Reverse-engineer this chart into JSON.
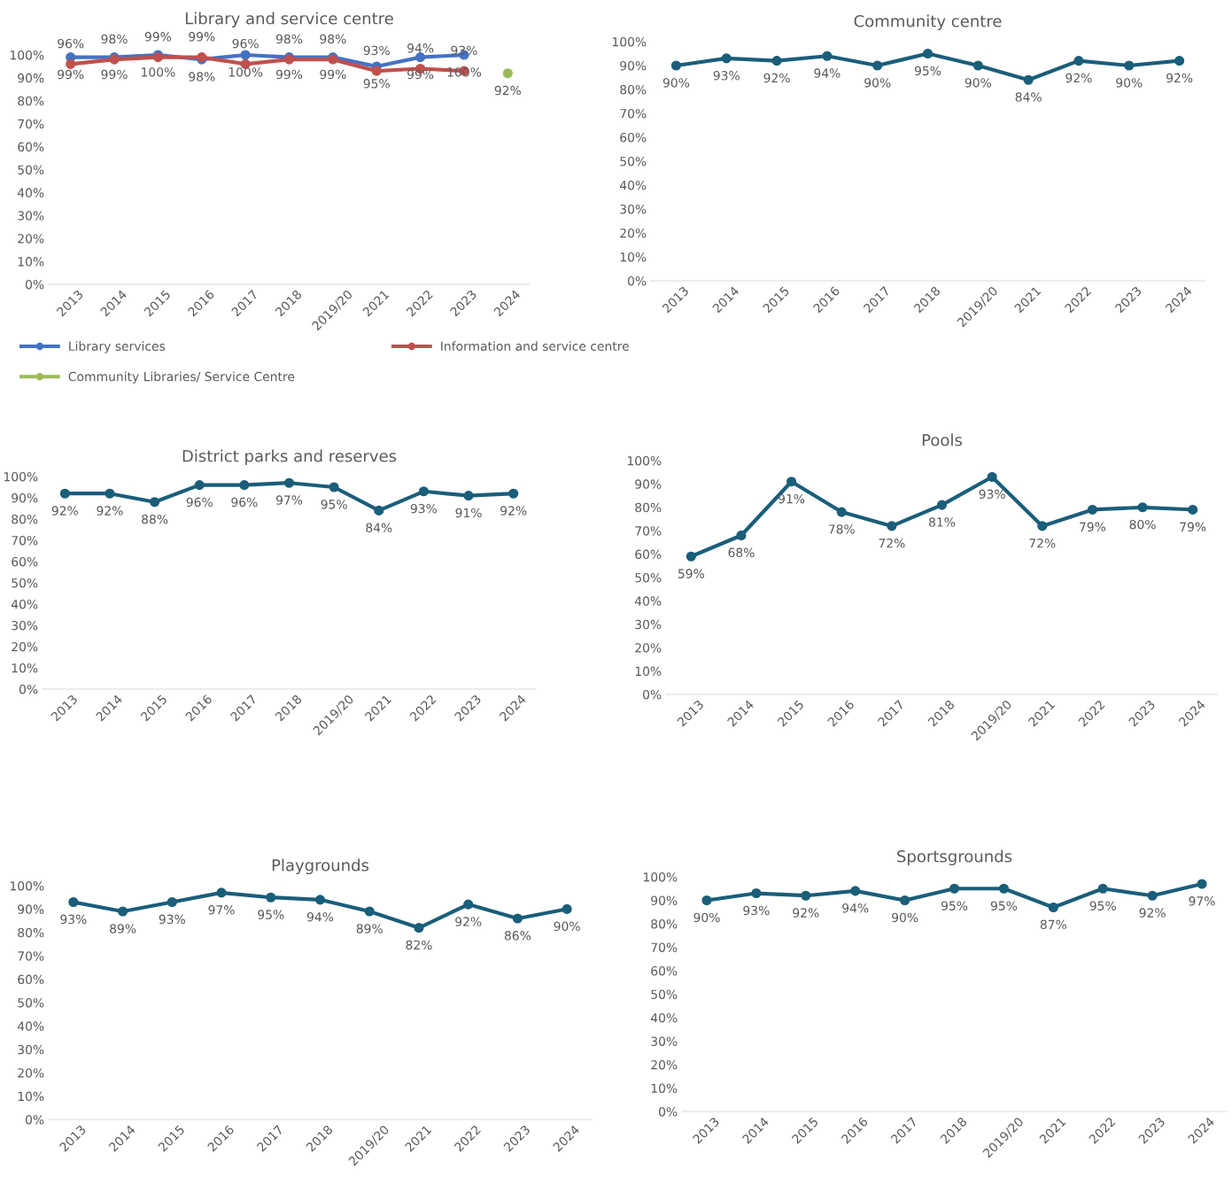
{
  "chart_data": [
    {
      "type": "line",
      "title": "Library and service centre",
      "categories": [
        "2013",
        "2014",
        "2015",
        "2016",
        "2017",
        "2018",
        "2019/20",
        "2021",
        "2022",
        "2023",
        "2024"
      ],
      "ylim": [
        0,
        100
      ],
      "yticks": [
        {
          "value": 0,
          "label": "0%"
        },
        {
          "value": 10,
          "label": "10%"
        },
        {
          "value": 20,
          "label": "20%"
        },
        {
          "value": 30,
          "label": "30%"
        },
        {
          "value": 40,
          "label": "40%"
        },
        {
          "value": 50,
          "label": "50%"
        },
        {
          "value": 60,
          "label": "60%"
        },
        {
          "value": 70,
          "label": "70%"
        },
        {
          "value": 80,
          "label": "80%"
        },
        {
          "value": 90,
          "label": "90%"
        },
        {
          "value": 100,
          "label": "100%"
        }
      ],
      "marker": "circle",
      "grid": false,
      "legend": "bottom",
      "series": [
        {
          "name": "Library services",
          "color": "#4472c4",
          "values": [
            99,
            99,
            100,
            98,
            100,
            99,
            99,
            95,
            99,
            100,
            null
          ],
          "value_labels": [
            "99%",
            "99%",
            "100%",
            "98%",
            "100%",
            "99%",
            "99%",
            "95%",
            "99%",
            "100%",
            null
          ]
        },
        {
          "name": "Information and service centre",
          "color": "#c0504d",
          "values": [
            96,
            98,
            99,
            99,
            96,
            98,
            98,
            93,
            94,
            93,
            null
          ],
          "value_labels": [
            "96%",
            "98%",
            "99%",
            "99%",
            "96%",
            "98%",
            "98%",
            "93%",
            "94%",
            "93%",
            null
          ]
        },
        {
          "name": "Community Libraries/ Service Centre",
          "color": "#9bbb59",
          "values": [
            null,
            null,
            null,
            null,
            null,
            null,
            null,
            null,
            null,
            null,
            92
          ],
          "value_labels": [
            null,
            null,
            null,
            null,
            null,
            null,
            null,
            null,
            null,
            null,
            "92%"
          ]
        }
      ]
    },
    {
      "type": "line",
      "title": "Community centre",
      "categories": [
        "2013",
        "2014",
        "2015",
        "2016",
        "2017",
        "2018",
        "2019/20",
        "2021",
        "2022",
        "2023",
        "2024"
      ],
      "ylim": [
        0,
        100
      ],
      "yticks": [
        {
          "value": 0,
          "label": "0%"
        },
        {
          "value": 10,
          "label": "10%"
        },
        {
          "value": 20,
          "label": "20%"
        },
        {
          "value": 30,
          "label": "30%"
        },
        {
          "value": 40,
          "label": "40%"
        },
        {
          "value": 50,
          "label": "50%"
        },
        {
          "value": 60,
          "label": "60%"
        },
        {
          "value": 70,
          "label": "70%"
        },
        {
          "value": 80,
          "label": "80%"
        },
        {
          "value": 90,
          "label": "90%"
        },
        {
          "value": 100,
          "label": "100%"
        }
      ],
      "marker": "circle",
      "grid": false,
      "series": [
        {
          "color": "#1a5e7a",
          "values": [
            90,
            93,
            92,
            94,
            90,
            95,
            90,
            84,
            92,
            90,
            92
          ],
          "value_labels": [
            "90%",
            "93%",
            "92%",
            "94%",
            "90%",
            "95%",
            "90%",
            "84%",
            "92%",
            "90%",
            "92%"
          ]
        }
      ]
    },
    {
      "type": "line",
      "title": "District parks and reserves",
      "categories": [
        "2013",
        "2014",
        "2015",
        "2016",
        "2017",
        "2018",
        "2019/20",
        "2021",
        "2022",
        "2023",
        "2024"
      ],
      "ylim": [
        0,
        100
      ],
      "yticks": [
        {
          "value": 0,
          "label": "0%"
        },
        {
          "value": 10,
          "label": "10%"
        },
        {
          "value": 20,
          "label": "20%"
        },
        {
          "value": 30,
          "label": "30%"
        },
        {
          "value": 40,
          "label": "40%"
        },
        {
          "value": 50,
          "label": "50%"
        },
        {
          "value": 60,
          "label": "60%"
        },
        {
          "value": 70,
          "label": "70%"
        },
        {
          "value": 80,
          "label": "80%"
        },
        {
          "value": 90,
          "label": "90%"
        },
        {
          "value": 100,
          "label": "100%"
        }
      ],
      "marker": "circle",
      "grid": false,
      "series": [
        {
          "color": "#1a5e7a",
          "values": [
            92,
            92,
            88,
            96,
            96,
            97,
            95,
            84,
            93,
            91,
            92
          ],
          "value_labels": [
            "92%",
            "92%",
            "88%",
            "96%",
            "96%",
            "97%",
            "95%",
            "84%",
            "93%",
            "91%",
            "92%"
          ]
        }
      ]
    },
    {
      "type": "line",
      "title": "Pools",
      "categories": [
        "2013",
        "2014",
        "2015",
        "2016",
        "2017",
        "2018",
        "2019/20",
        "2021",
        "2022",
        "2023",
        "2024"
      ],
      "ylim": [
        0,
        100
      ],
      "yticks": [
        {
          "value": 0,
          "label": "0%"
        },
        {
          "value": 10,
          "label": "10%"
        },
        {
          "value": 20,
          "label": "20%"
        },
        {
          "value": 30,
          "label": "30%"
        },
        {
          "value": 40,
          "label": "40%"
        },
        {
          "value": 50,
          "label": "50%"
        },
        {
          "value": 60,
          "label": "60%"
        },
        {
          "value": 70,
          "label": "70%"
        },
        {
          "value": 80,
          "label": "80%"
        },
        {
          "value": 90,
          "label": "90%"
        },
        {
          "value": 100,
          "label": "100%"
        }
      ],
      "marker": "circle",
      "grid": false,
      "series": [
        {
          "color": "#1a5e7a",
          "values": [
            59,
            68,
            91,
            78,
            72,
            81,
            93,
            72,
            79,
            80,
            79
          ],
          "value_labels": [
            "59%",
            "68%",
            "91%",
            "78%",
            "72%",
            "81%",
            "93%",
            "72%",
            "79%",
            "80%",
            "79%"
          ]
        }
      ]
    },
    {
      "type": "line",
      "title": "Playgrounds",
      "categories": [
        "2013",
        "2014",
        "2015",
        "2016",
        "2017",
        "2018",
        "2019/20",
        "2021",
        "2022",
        "2023",
        "2024"
      ],
      "ylim": [
        0,
        100
      ],
      "yticks": [
        {
          "value": 0,
          "label": "0%"
        },
        {
          "value": 10,
          "label": "10%"
        },
        {
          "value": 20,
          "label": "20%"
        },
        {
          "value": 30,
          "label": "30%"
        },
        {
          "value": 40,
          "label": "40%"
        },
        {
          "value": 50,
          "label": "50%"
        },
        {
          "value": 60,
          "label": "60%"
        },
        {
          "value": 70,
          "label": "70%"
        },
        {
          "value": 80,
          "label": "80%"
        },
        {
          "value": 90,
          "label": "90%"
        },
        {
          "value": 100,
          "label": "100%"
        }
      ],
      "marker": "circle",
      "grid": false,
      "series": [
        {
          "color": "#1a5e7a",
          "values": [
            93,
            89,
            93,
            97,
            95,
            94,
            89,
            82,
            92,
            86,
            90
          ],
          "value_labels": [
            "93%",
            "89%",
            "93%",
            "97%",
            "95%",
            "94%",
            "89%",
            "82%",
            "92%",
            "86%",
            "90%"
          ]
        }
      ]
    },
    {
      "type": "line",
      "title": "Sportsgrounds",
      "categories": [
        "2013",
        "2014",
        "2015",
        "2016",
        "2017",
        "2018",
        "2019/20",
        "2021",
        "2022",
        "2023",
        "2024"
      ],
      "ylim": [
        0,
        100
      ],
      "yticks": [
        {
          "value": 0,
          "label": "0%"
        },
        {
          "value": 10,
          "label": "10%"
        },
        {
          "value": 20,
          "label": "20%"
        },
        {
          "value": 30,
          "label": "30%"
        },
        {
          "value": 40,
          "label": "40%"
        },
        {
          "value": 50,
          "label": "50%"
        },
        {
          "value": 60,
          "label": "60%"
        },
        {
          "value": 70,
          "label": "70%"
        },
        {
          "value": 80,
          "label": "80%"
        },
        {
          "value": 90,
          "label": "90%"
        },
        {
          "value": 100,
          "label": "100%"
        }
      ],
      "marker": "circle",
      "grid": false,
      "series": [
        {
          "color": "#1a5e7a",
          "values": [
            90,
            93,
            92,
            94,
            90,
            95,
            95,
            87,
            95,
            92,
            97
          ],
          "value_labels": [
            "90%",
            "93%",
            "92%",
            "94%",
            "90%",
            "95%",
            "95%",
            "87%",
            "95%",
            "92%",
            "97%"
          ]
        }
      ]
    }
  ]
}
